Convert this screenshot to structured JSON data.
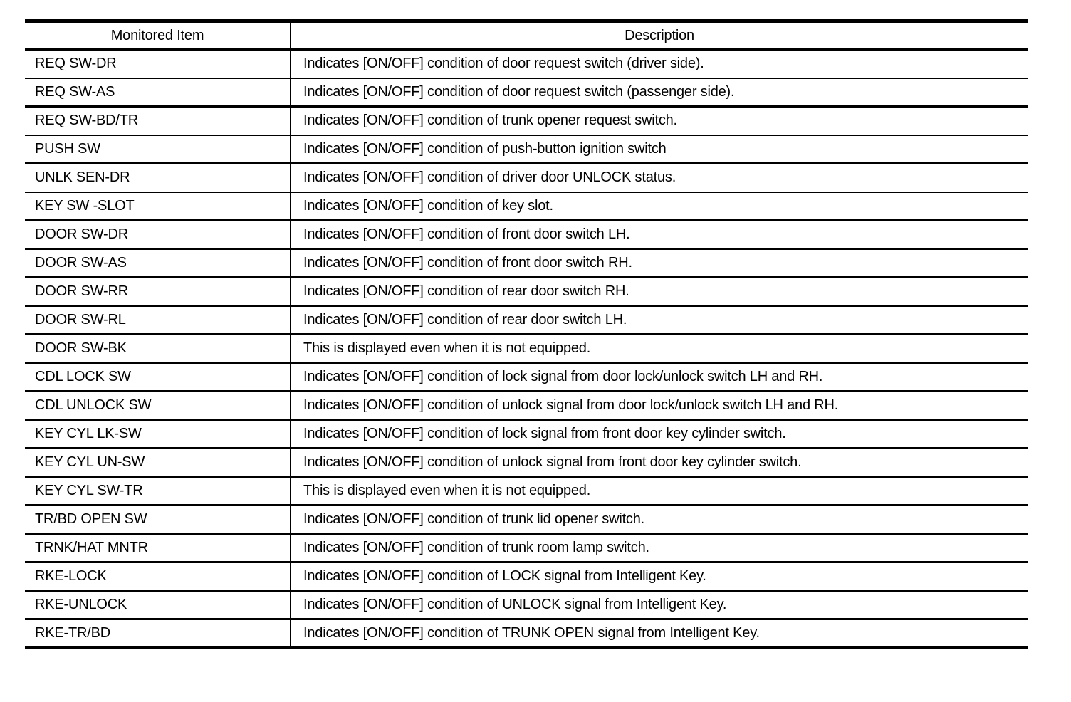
{
  "colors": {
    "background": "#ffffff",
    "text": "#000000",
    "rule": "#000000"
  },
  "table": {
    "columns": [
      "Monitored Item",
      "Description"
    ],
    "rows": [
      {
        "item": "REQ SW-DR",
        "description": "Indicates [ON/OFF] condition of door request switch (driver side)."
      },
      {
        "item": "REQ SW-AS",
        "description": "Indicates [ON/OFF] condition of door request switch (passenger side)."
      },
      {
        "item": "REQ SW-BD/TR",
        "description": "Indicates [ON/OFF] condition of trunk opener request switch."
      },
      {
        "item": "PUSH SW",
        "description": "Indicates [ON/OFF] condition of push-button ignition switch"
      },
      {
        "item": "UNLK SEN-DR",
        "description": "Indicates [ON/OFF] condition of driver door UNLOCK status."
      },
      {
        "item": "KEY SW -SLOT",
        "description": "Indicates [ON/OFF] condition of key slot."
      },
      {
        "item": "DOOR SW-DR",
        "description": "Indicates [ON/OFF] condition of front door switch LH."
      },
      {
        "item": "DOOR SW-AS",
        "description": "Indicates [ON/OFF] condition of front door switch RH."
      },
      {
        "item": "DOOR SW-RR",
        "description": "Indicates [ON/OFF] condition of rear door switch RH."
      },
      {
        "item": "DOOR SW-RL",
        "description": "Indicates [ON/OFF] condition of rear door switch LH."
      },
      {
        "item": "DOOR SW-BK",
        "description": "This is displayed even when it is not equipped."
      },
      {
        "item": "CDL LOCK SW",
        "description": "Indicates [ON/OFF] condition of lock signal from door lock/unlock switch LH and RH."
      },
      {
        "item": "CDL UNLOCK SW",
        "description": "Indicates [ON/OFF] condition of unlock signal from door lock/unlock switch LH and RH."
      },
      {
        "item": "KEY CYL LK-SW",
        "description": "Indicates [ON/OFF] condition of lock signal from front door key cylinder switch."
      },
      {
        "item": "KEY CYL UN-SW",
        "description": "Indicates [ON/OFF] condition of unlock signal from front door key cylinder switch."
      },
      {
        "item": "KEY CYL SW-TR",
        "description": "This is displayed even when it is not equipped."
      },
      {
        "item": "TR/BD OPEN SW",
        "description": "Indicates [ON/OFF] condition of trunk lid opener switch."
      },
      {
        "item": "TRNK/HAT MNTR",
        "description": "Indicates [ON/OFF] condition of trunk room lamp switch."
      },
      {
        "item": "RKE-LOCK",
        "description": "Indicates [ON/OFF] condition of LOCK signal from Intelligent Key."
      },
      {
        "item": "RKE-UNLOCK",
        "description": "Indicates [ON/OFF] condition of UNLOCK signal from Intelligent Key."
      },
      {
        "item": "RKE-TR/BD",
        "description": "Indicates [ON/OFF] condition of TRUNK OPEN signal from Intelligent Key."
      }
    ]
  }
}
